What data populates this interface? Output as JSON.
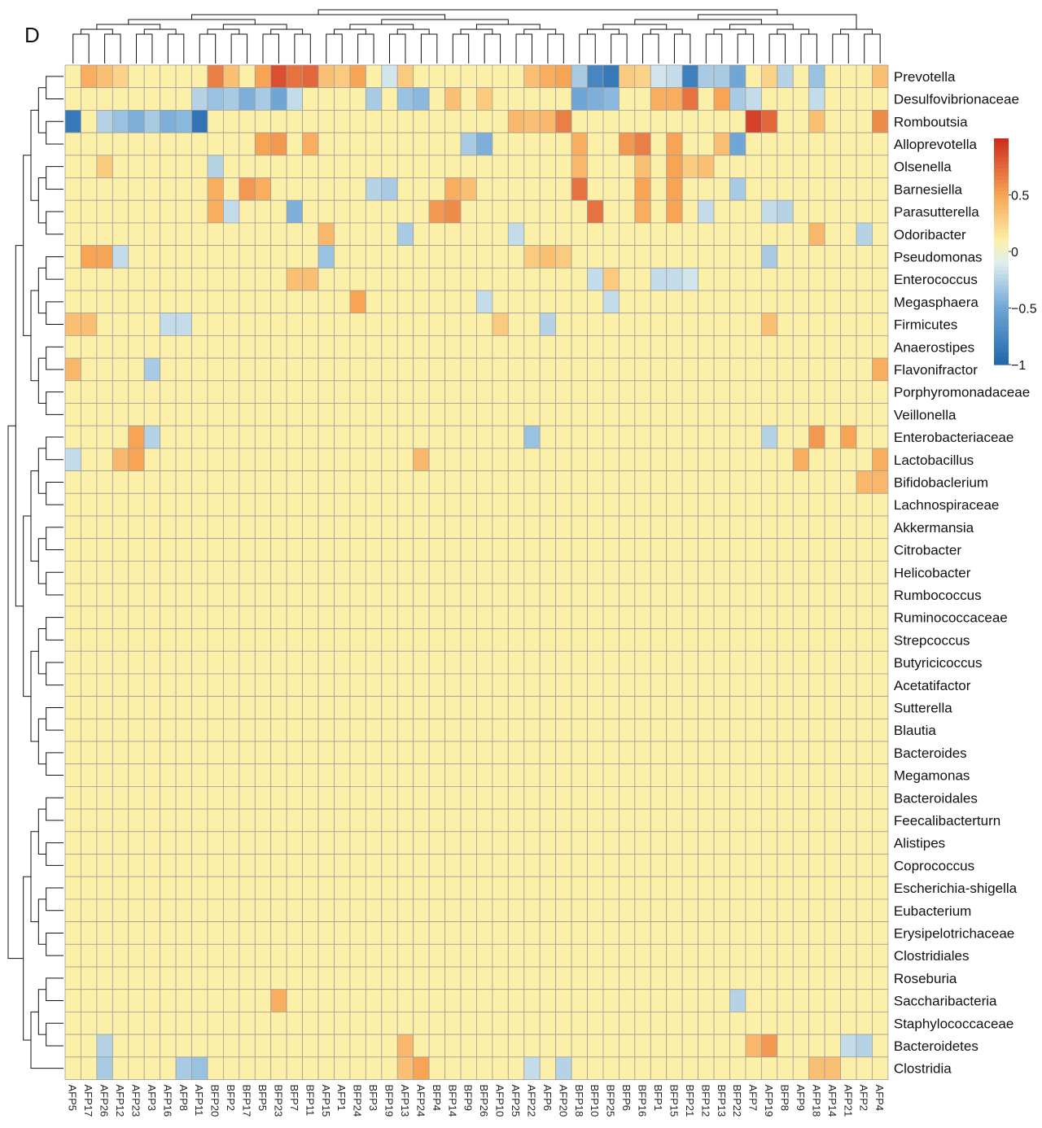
{
  "figure": {
    "panel_label": "D"
  },
  "chart_data": {
    "type": "heatmap",
    "title": "",
    "rows": [
      "Prevotella",
      "Desulfovibrionaceae",
      "Romboutsia",
      "Alloprevotella",
      "Olsenella",
      "Barnesiella",
      "Parasutterella",
      "Odoribacter",
      "Pseudomonas",
      "Enterococcus",
      "Megasphaera",
      "Firmicutes",
      "Anaerostipes",
      "Flavonifractor",
      "Porphyromonadaceae",
      "Veillonella",
      "Enterobacteriaceae",
      "Lactobacillus",
      "Bifidobaclerium",
      "Lachnospiraceae",
      "Akkermansia",
      "Citrobacter",
      "Helicobacter",
      "Rumbococcus",
      "Ruminococcaceae",
      "Strepcoccus",
      "Butyricicoccus",
      "Acetatifactor",
      "Sutterella",
      "Blautia",
      "Bacteroides",
      "Megamonas",
      "Bacteroidales",
      "Feecalibacterturn",
      "Alistipes",
      "Coprococcus",
      "Escherichia-shigella",
      "Eubacterium",
      "Erysipelotrichaceae",
      "Clostridiales",
      "Roseburia",
      "Saccharibacteria",
      "Staphylococcaceae",
      "Bacteroidetes",
      "Clostridia"
    ],
    "columns": [
      "AFP5",
      "AFP17",
      "AFP26",
      "AFP12",
      "AFP23",
      "AFP3",
      "AFP16",
      "AFP8",
      "AFP11",
      "BFP20",
      "BFP2",
      "BFP17",
      "BFP5",
      "BFP23",
      "BFP7",
      "BFP11",
      "AFP15",
      "AFP1",
      "BFP24",
      "BFP3",
      "BFP19",
      "AFP13",
      "AFP24",
      "BFP4",
      "BFP14",
      "BFP9",
      "BFP26",
      "AFP10",
      "AFP25",
      "AFP22",
      "AFP6",
      "AFP20",
      "BFP18",
      "BFP10",
      "BFP25",
      "BFP6",
      "BFP16",
      "BFP1",
      "BFP15",
      "BFP21",
      "BFP12",
      "BFP13",
      "BFP22",
      "AFP7",
      "AFP19",
      "BFP8",
      "AFP9",
      "AFP18",
      "AFP14",
      "AFP21",
      "AFP2",
      "AFP4"
    ],
    "values_note": "Values are approximate readings of cell colours; any cell not listed is near 0.1 (pale yellow).",
    "default_value": 0.1,
    "notable_values": [
      {
        "row": "Prevotella",
        "col": "AFP17",
        "value": 0.45
      },
      {
        "row": "Prevotella",
        "col": "AFP26",
        "value": 0.35
      },
      {
        "row": "Prevotella",
        "col": "AFP12",
        "value": 0.25
      },
      {
        "row": "Prevotella",
        "col": "BFP20",
        "value": 0.65
      },
      {
        "row": "Prevotella",
        "col": "BFP2",
        "value": 0.35
      },
      {
        "row": "Prevotella",
        "col": "BFP5",
        "value": 0.5
      },
      {
        "row": "Prevotella",
        "col": "BFP23",
        "value": 0.85
      },
      {
        "row": "Prevotella",
        "col": "BFP7",
        "value": 0.7
      },
      {
        "row": "Prevotella",
        "col": "BFP11",
        "value": 0.75
      },
      {
        "row": "Prevotella",
        "col": "AFP15",
        "value": 0.35
      },
      {
        "row": "Prevotella",
        "col": "AFP1",
        "value": 0.3
      },
      {
        "row": "Prevotella",
        "col": "BFP24",
        "value": 0.5
      },
      {
        "row": "Prevotella",
        "col": "BFP19",
        "value": -0.15
      },
      {
        "row": "Prevotella",
        "col": "AFP13",
        "value": 0.3
      },
      {
        "row": "Prevotella",
        "col": "AFP22",
        "value": 0.35
      },
      {
        "row": "Prevotella",
        "col": "AFP6",
        "value": 0.45
      },
      {
        "row": "Prevotella",
        "col": "AFP20",
        "value": 0.5
      },
      {
        "row": "Prevotella",
        "col": "BFP18",
        "value": -0.3
      },
      {
        "row": "Prevotella",
        "col": "BFP10",
        "value": -0.75
      },
      {
        "row": "Prevotella",
        "col": "BFP25",
        "value": -0.85
      },
      {
        "row": "Prevotella",
        "col": "BFP6",
        "value": 0.3
      },
      {
        "row": "Prevotella",
        "col": "BFP16",
        "value": 0.25
      },
      {
        "row": "Prevotella",
        "col": "BFP1",
        "value": -0.15
      },
      {
        "row": "Prevotella",
        "col": "BFP15",
        "value": -0.2
      },
      {
        "row": "Prevotella",
        "col": "BFP21",
        "value": -0.8
      },
      {
        "row": "Prevotella",
        "col": "BFP12",
        "value": -0.3
      },
      {
        "row": "Prevotella",
        "col": "BFP13",
        "value": -0.3
      },
      {
        "row": "Prevotella",
        "col": "BFP22",
        "value": -0.5
      },
      {
        "row": "Prevotella",
        "col": "AFP19",
        "value": 0.25
      },
      {
        "row": "Prevotella",
        "col": "BFP8",
        "value": -0.25
      },
      {
        "row": "Prevotella",
        "col": "AFP18",
        "value": -0.35
      },
      {
        "row": "Prevotella",
        "col": "AFP4",
        "value": 0.35
      },
      {
        "row": "Desulfovibrionaceae",
        "col": "AFP11",
        "value": -0.25
      },
      {
        "row": "Desulfovibrionaceae",
        "col": "BFP20",
        "value": -0.35
      },
      {
        "row": "Desulfovibrionaceae",
        "col": "BFP2",
        "value": -0.3
      },
      {
        "row": "Desulfovibrionaceae",
        "col": "BFP17",
        "value": -0.45
      },
      {
        "row": "Desulfovibrionaceae",
        "col": "BFP5",
        "value": -0.3
      },
      {
        "row": "Desulfovibrionaceae",
        "col": "BFP23",
        "value": -0.5
      },
      {
        "row": "Desulfovibrionaceae",
        "col": "BFP7",
        "value": -0.2
      },
      {
        "row": "Desulfovibrionaceae",
        "col": "BFP3",
        "value": -0.3
      },
      {
        "row": "Desulfovibrionaceae",
        "col": "AFP13",
        "value": -0.35
      },
      {
        "row": "Desulfovibrionaceae",
        "col": "AFP24",
        "value": -0.4
      },
      {
        "row": "Desulfovibrionaceae",
        "col": "BFP14",
        "value": 0.35
      },
      {
        "row": "Desulfovibrionaceae",
        "col": "BFP26",
        "value": 0.3
      },
      {
        "row": "Desulfovibrionaceae",
        "col": "BFP18",
        "value": -0.5
      },
      {
        "row": "Desulfovibrionaceae",
        "col": "BFP10",
        "value": -0.45
      },
      {
        "row": "Desulfovibrionaceae",
        "col": "BFP25",
        "value": -0.4
      },
      {
        "row": "Desulfovibrionaceae",
        "col": "BFP1",
        "value": 0.45
      },
      {
        "row": "Desulfovibrionaceae",
        "col": "BFP15",
        "value": 0.45
      },
      {
        "row": "Desulfovibrionaceae",
        "col": "BFP21",
        "value": 0.7
      },
      {
        "row": "Desulfovibrionaceae",
        "col": "BFP13",
        "value": 0.5
      },
      {
        "row": "Desulfovibrionaceae",
        "col": "BFP22",
        "value": -0.3
      },
      {
        "row": "Desulfovibrionaceae",
        "col": "AFP7",
        "value": -0.2
      },
      {
        "row": "Desulfovibrionaceae",
        "col": "AFP18",
        "value": -0.2
      },
      {
        "row": "Romboutsia",
        "col": "AFP5",
        "value": -0.85
      },
      {
        "row": "Romboutsia",
        "col": "AFP26",
        "value": -0.25
      },
      {
        "row": "Romboutsia",
        "col": "AFP12",
        "value": -0.35
      },
      {
        "row": "Romboutsia",
        "col": "AFP23",
        "value": -0.45
      },
      {
        "row": "Romboutsia",
        "col": "AFP3",
        "value": -0.3
      },
      {
        "row": "Romboutsia",
        "col": "AFP16",
        "value": -0.45
      },
      {
        "row": "Romboutsia",
        "col": "AFP8",
        "value": -0.4
      },
      {
        "row": "Romboutsia",
        "col": "AFP11",
        "value": -0.9
      },
      {
        "row": "Romboutsia",
        "col": "AFP25",
        "value": 0.4
      },
      {
        "row": "Romboutsia",
        "col": "AFP22",
        "value": 0.35
      },
      {
        "row": "Romboutsia",
        "col": "AFP6",
        "value": 0.4
      },
      {
        "row": "Romboutsia",
        "col": "AFP20",
        "value": 0.65
      },
      {
        "row": "Romboutsia",
        "col": "AFP7",
        "value": 0.9
      },
      {
        "row": "Romboutsia",
        "col": "AFP19",
        "value": 0.75
      },
      {
        "row": "Romboutsia",
        "col": "AFP18",
        "value": 0.35
      },
      {
        "row": "Romboutsia",
        "col": "AFP4",
        "value": 0.6
      },
      {
        "row": "Alloprevotella",
        "col": "BFP5",
        "value": 0.5
      },
      {
        "row": "Alloprevotella",
        "col": "BFP23",
        "value": 0.55
      },
      {
        "row": "Alloprevotella",
        "col": "BFP11",
        "value": 0.45
      },
      {
        "row": "Alloprevotella",
        "col": "BFP26",
        "value": -0.45
      },
      {
        "row": "Alloprevotella",
        "col": "BFP9",
        "value": -0.3
      },
      {
        "row": "Alloprevotella",
        "col": "BFP18",
        "value": 0.45
      },
      {
        "row": "Alloprevotella",
        "col": "BFP6",
        "value": 0.55
      },
      {
        "row": "Alloprevotella",
        "col": "BFP16",
        "value": 0.65
      },
      {
        "row": "Alloprevotella",
        "col": "BFP15",
        "value": 0.5
      },
      {
        "row": "Alloprevotella",
        "col": "BFP22",
        "value": -0.5
      },
      {
        "row": "Alloprevotella",
        "col": "BFP13",
        "value": 0.35
      },
      {
        "row": "Olsenella",
        "col": "BFP20",
        "value": -0.25
      },
      {
        "row": "Olsenella",
        "col": "AFP26",
        "value": 0.3
      },
      {
        "row": "Olsenella",
        "col": "BFP18",
        "value": 0.4
      },
      {
        "row": "Olsenella",
        "col": "BFP16",
        "value": 0.35
      },
      {
        "row": "Olsenella",
        "col": "BFP15",
        "value": 0.5
      },
      {
        "row": "Olsenella",
        "col": "BFP12",
        "value": 0.35
      },
      {
        "row": "Olsenella",
        "col": "BFP21",
        "value": 0.3
      },
      {
        "row": "Barnesiella",
        "col": "BFP20",
        "value": 0.45
      },
      {
        "row": "Barnesiella",
        "col": "BFP17",
        "value": 0.55
      },
      {
        "row": "Barnesiella",
        "col": "BFP5",
        "value": 0.45
      },
      {
        "row": "Barnesiella",
        "col": "BFP3",
        "value": -0.25
      },
      {
        "row": "Barnesiella",
        "col": "BFP19",
        "value": -0.3
      },
      {
        "row": "Barnesiella",
        "col": "BFP14",
        "value": 0.45
      },
      {
        "row": "Barnesiella",
        "col": "BFP9",
        "value": 0.35
      },
      {
        "row": "Barnesiella",
        "col": "BFP18",
        "value": 0.7
      },
      {
        "row": "Barnesiella",
        "col": "BFP16",
        "value": 0.5
      },
      {
        "row": "Barnesiella",
        "col": "BFP15",
        "value": 0.5
      },
      {
        "row": "Barnesiella",
        "col": "BFP22",
        "value": -0.3
      },
      {
        "row": "Parasutterella",
        "col": "BFP20",
        "value": 0.45
      },
      {
        "row": "Parasutterella",
        "col": "BFP2",
        "value": -0.2
      },
      {
        "row": "Parasutterella",
        "col": "BFP7",
        "value": -0.45
      },
      {
        "row": "Parasutterella",
        "col": "BFP4",
        "value": 0.55
      },
      {
        "row": "Parasutterella",
        "col": "BFP14",
        "value": 0.6
      },
      {
        "row": "Parasutterella",
        "col": "BFP10",
        "value": 0.7
      },
      {
        "row": "Parasutterella",
        "col": "BFP16",
        "value": 0.45
      },
      {
        "row": "Parasutterella",
        "col": "BFP15",
        "value": 0.5
      },
      {
        "row": "Parasutterella",
        "col": "BFP12",
        "value": -0.2
      },
      {
        "row": "Parasutterella",
        "col": "AFP19",
        "value": -0.2
      },
      {
        "row": "Parasutterella",
        "col": "BFP8",
        "value": -0.25
      },
      {
        "row": "Odoribacter",
        "col": "AFP15",
        "value": 0.4
      },
      {
        "row": "Odoribacter",
        "col": "AFP13",
        "value": -0.3
      },
      {
        "row": "Odoribacter",
        "col": "AFP25",
        "value": -0.2
      },
      {
        "row": "Odoribacter",
        "col": "AFP18",
        "value": 0.4
      },
      {
        "row": "Odoribacter",
        "col": "AFP2",
        "value": -0.25
      },
      {
        "row": "Pseudomonas",
        "col": "AFP17",
        "value": 0.5
      },
      {
        "row": "Pseudomonas",
        "col": "AFP26",
        "value": 0.5
      },
      {
        "row": "Pseudomonas",
        "col": "AFP12",
        "value": -0.2
      },
      {
        "row": "Pseudomonas",
        "col": "AFP15",
        "value": -0.35
      },
      {
        "row": "Pseudomonas",
        "col": "AFP22",
        "value": 0.3
      },
      {
        "row": "Pseudomonas",
        "col": "AFP6",
        "value": 0.35
      },
      {
        "row": "Pseudomonas",
        "col": "AFP20",
        "value": 0.3
      },
      {
        "row": "Pseudomonas",
        "col": "AFP19",
        "value": -0.3
      },
      {
        "row": "Enterococcus",
        "col": "BFP7",
        "value": 0.35
      },
      {
        "row": "Enterococcus",
        "col": "BFP11",
        "value": 0.35
      },
      {
        "row": "Enterococcus",
        "col": "BFP10",
        "value": -0.2
      },
      {
        "row": "Enterococcus",
        "col": "BFP25",
        "value": 0.3
      },
      {
        "row": "Enterococcus",
        "col": "BFP1",
        "value": -0.2
      },
      {
        "row": "Enterococcus",
        "col": "BFP15",
        "value": -0.2
      },
      {
        "row": "Enterococcus",
        "col": "BFP21",
        "value": -0.15
      },
      {
        "row": "Megasphaera",
        "col": "BFP24",
        "value": 0.5
      },
      {
        "row": "Megasphaera",
        "col": "BFP26",
        "value": -0.2
      },
      {
        "row": "Megasphaera",
        "col": "BFP25",
        "value": -0.2
      },
      {
        "row": "Firmicutes",
        "col": "AFP5",
        "value": 0.35
      },
      {
        "row": "Firmicutes",
        "col": "AFP17",
        "value": 0.35
      },
      {
        "row": "Firmicutes",
        "col": "AFP16",
        "value": -0.2
      },
      {
        "row": "Firmicutes",
        "col": "AFP8",
        "value": -0.2
      },
      {
        "row": "Firmicutes",
        "col": "AFP10",
        "value": 0.3
      },
      {
        "row": "Firmicutes",
        "col": "AFP6",
        "value": -0.25
      },
      {
        "row": "Firmicutes",
        "col": "AFP19",
        "value": 0.35
      },
      {
        "row": "Flavonifractor",
        "col": "AFP5",
        "value": 0.4
      },
      {
        "row": "Flavonifractor",
        "col": "AFP3",
        "value": -0.3
      },
      {
        "row": "Flavonifractor",
        "col": "AFP4",
        "value": 0.45
      },
      {
        "row": "Enterobacteriaceae",
        "col": "AFP23",
        "value": 0.5
      },
      {
        "row": "Enterobacteriaceae",
        "col": "AFP3",
        "value": -0.25
      },
      {
        "row": "Enterobacteriaceae",
        "col": "AFP22",
        "value": -0.35
      },
      {
        "row": "Enterobacteriaceae",
        "col": "AFP18",
        "value": 0.55
      },
      {
        "row": "Enterobacteriaceae",
        "col": "AFP21",
        "value": 0.5
      },
      {
        "row": "Enterobacteriaceae",
        "col": "AFP19",
        "value": -0.25
      },
      {
        "row": "Lactobacillus",
        "col": "AFP5",
        "value": -0.2
      },
      {
        "row": "Lactobacillus",
        "col": "AFP12",
        "value": 0.4
      },
      {
        "row": "Lactobacillus",
        "col": "AFP23",
        "value": 0.5
      },
      {
        "row": "Lactobacillus",
        "col": "AFP24",
        "value": 0.4
      },
      {
        "row": "Lactobacillus",
        "col": "AFP9",
        "value": 0.45
      },
      {
        "row": "Lactobacillus",
        "col": "AFP4",
        "value": 0.45
      },
      {
        "row": "Bifidobaclerium",
        "col": "AFP2",
        "value": 0.4
      },
      {
        "row": "Bifidobaclerium",
        "col": "AFP4",
        "value": 0.4
      },
      {
        "row": "Saccharibacteria",
        "col": "BFP23",
        "value": 0.45
      },
      {
        "row": "Saccharibacteria",
        "col": "BFP22",
        "value": -0.25
      },
      {
        "row": "Bacteroidetes",
        "col": "AFP13",
        "value": 0.4
      },
      {
        "row": "Bacteroidetes",
        "col": "AFP7",
        "value": 0.4
      },
      {
        "row": "Bacteroidetes",
        "col": "AFP19",
        "value": 0.55
      },
      {
        "row": "Bacteroidetes",
        "col": "AFP26",
        "value": -0.25
      },
      {
        "row": "Bacteroidetes",
        "col": "AFP21",
        "value": -0.2
      },
      {
        "row": "Bacteroidetes",
        "col": "AFP2",
        "value": -0.25
      },
      {
        "row": "Clostridia",
        "col": "AFP26",
        "value": -0.3
      },
      {
        "row": "Clostridia",
        "col": "AFP8",
        "value": -0.3
      },
      {
        "row": "Clostridia",
        "col": "AFP11",
        "value": -0.35
      },
      {
        "row": "Clostridia",
        "col": "AFP13",
        "value": 0.35
      },
      {
        "row": "Clostridia",
        "col": "AFP24",
        "value": 0.5
      },
      {
        "row": "Clostridia",
        "col": "AFP22",
        "value": -0.2
      },
      {
        "row": "Clostridia",
        "col": "AFP20",
        "value": -0.25
      },
      {
        "row": "Clostridia",
        "col": "AFP18",
        "value": 0.35
      },
      {
        "row": "Clostridia",
        "col": "AFP14",
        "value": 0.35
      }
    ],
    "colorscale": {
      "min": -1,
      "max": 1,
      "stops": [
        {
          "value": -1.0,
          "color": "#2166ac"
        },
        {
          "value": -0.5,
          "color": "#6fa6d6"
        },
        {
          "value": -0.1,
          "color": "#e0eef0"
        },
        {
          "value": 0.1,
          "color": "#fcefa8"
        },
        {
          "value": 0.5,
          "color": "#f7a455"
        },
        {
          "value": 1.0,
          "color": "#cc2a1e"
        }
      ]
    },
    "legend": {
      "placement": "right",
      "tick_labels": [
        {
          "value": 0.5,
          "label": "0.5"
        },
        {
          "value": 0,
          "label": "0"
        },
        {
          "value": -0.5,
          "label": "−0.5"
        },
        {
          "value": -1,
          "label": "−1"
        }
      ]
    },
    "row_dendrogram": "left",
    "column_dendrogram": "top"
  }
}
